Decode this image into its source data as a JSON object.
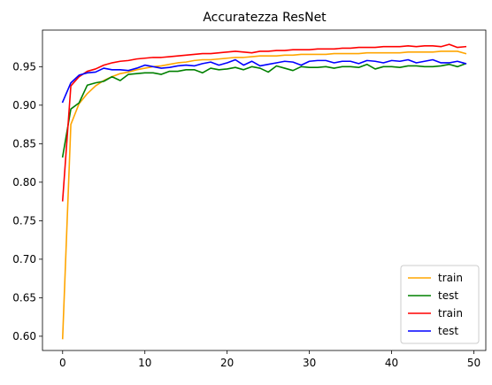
{
  "chart_data": {
    "type": "line",
    "title": "Accuratezza ResNet",
    "xlabel": "",
    "ylabel": "",
    "xlim": [
      -2.45,
      51.45
    ],
    "ylim": [
      0.5815,
      0.9975
    ],
    "xticks": [
      0,
      10,
      20,
      30,
      40,
      50
    ],
    "xtick_labels": [
      "0",
      "10",
      "20",
      "30",
      "40",
      "50"
    ],
    "yticks": [
      0.6,
      0.65,
      0.7,
      0.75,
      0.8,
      0.85,
      0.9,
      0.95
    ],
    "ytick_labels": [
      "0.60",
      "0.65",
      "0.70",
      "0.75",
      "0.80",
      "0.85",
      "0.90",
      "0.95"
    ],
    "grid": false,
    "legend_position": "lower right",
    "x": [
      0,
      1,
      2,
      3,
      4,
      5,
      6,
      7,
      8,
      9,
      10,
      11,
      12,
      13,
      14,
      15,
      16,
      17,
      18,
      19,
      20,
      21,
      22,
      23,
      24,
      25,
      26,
      27,
      28,
      29,
      30,
      31,
      32,
      33,
      34,
      35,
      36,
      37,
      38,
      39,
      40,
      41,
      42,
      43,
      44,
      45,
      46,
      47,
      48,
      49
    ],
    "series": [
      {
        "name": "train",
        "color": "#ffa500",
        "values": [
          0.597,
          0.875,
          0.902,
          0.915,
          0.925,
          0.932,
          0.937,
          0.941,
          0.943,
          0.946,
          0.948,
          0.95,
          0.951,
          0.953,
          0.955,
          0.956,
          0.958,
          0.959,
          0.959,
          0.96,
          0.961,
          0.962,
          0.962,
          0.963,
          0.964,
          0.964,
          0.964,
          0.965,
          0.965,
          0.966,
          0.966,
          0.966,
          0.966,
          0.967,
          0.967,
          0.967,
          0.967,
          0.968,
          0.968,
          0.968,
          0.968,
          0.968,
          0.969,
          0.969,
          0.969,
          0.969,
          0.97,
          0.97,
          0.97,
          0.967
        ]
      },
      {
        "name": "test",
        "color": "#008000",
        "values": [
          0.833,
          0.895,
          0.903,
          0.926,
          0.929,
          0.931,
          0.937,
          0.932,
          0.94,
          0.941,
          0.942,
          0.942,
          0.94,
          0.944,
          0.944,
          0.946,
          0.946,
          0.942,
          0.948,
          0.946,
          0.947,
          0.949,
          0.946,
          0.95,
          0.948,
          0.943,
          0.951,
          0.948,
          0.945,
          0.95,
          0.949,
          0.949,
          0.95,
          0.948,
          0.95,
          0.95,
          0.949,
          0.953,
          0.947,
          0.95,
          0.95,
          0.949,
          0.951,
          0.951,
          0.95,
          0.95,
          0.951,
          0.953,
          0.95,
          0.954
        ]
      },
      {
        "name": "train",
        "color": "#ff0000",
        "values": [
          0.776,
          0.925,
          0.937,
          0.944,
          0.947,
          0.952,
          0.955,
          0.957,
          0.958,
          0.96,
          0.961,
          0.962,
          0.962,
          0.963,
          0.964,
          0.965,
          0.966,
          0.967,
          0.967,
          0.968,
          0.969,
          0.97,
          0.969,
          0.968,
          0.97,
          0.97,
          0.971,
          0.971,
          0.972,
          0.972,
          0.972,
          0.973,
          0.973,
          0.973,
          0.974,
          0.974,
          0.975,
          0.975,
          0.975,
          0.976,
          0.976,
          0.976,
          0.977,
          0.976,
          0.977,
          0.977,
          0.976,
          0.979,
          0.975,
          0.976
        ]
      },
      {
        "name": "test",
        "color": "#0000ff",
        "values": [
          0.904,
          0.929,
          0.939,
          0.942,
          0.943,
          0.948,
          0.946,
          0.946,
          0.945,
          0.948,
          0.952,
          0.95,
          0.948,
          0.949,
          0.951,
          0.952,
          0.951,
          0.954,
          0.956,
          0.952,
          0.955,
          0.959,
          0.952,
          0.957,
          0.951,
          0.953,
          0.955,
          0.957,
          0.956,
          0.952,
          0.957,
          0.958,
          0.958,
          0.955,
          0.957,
          0.957,
          0.954,
          0.958,
          0.957,
          0.955,
          0.958,
          0.957,
          0.959,
          0.955,
          0.957,
          0.959,
          0.955,
          0.955,
          0.957,
          0.954
        ]
      }
    ]
  }
}
